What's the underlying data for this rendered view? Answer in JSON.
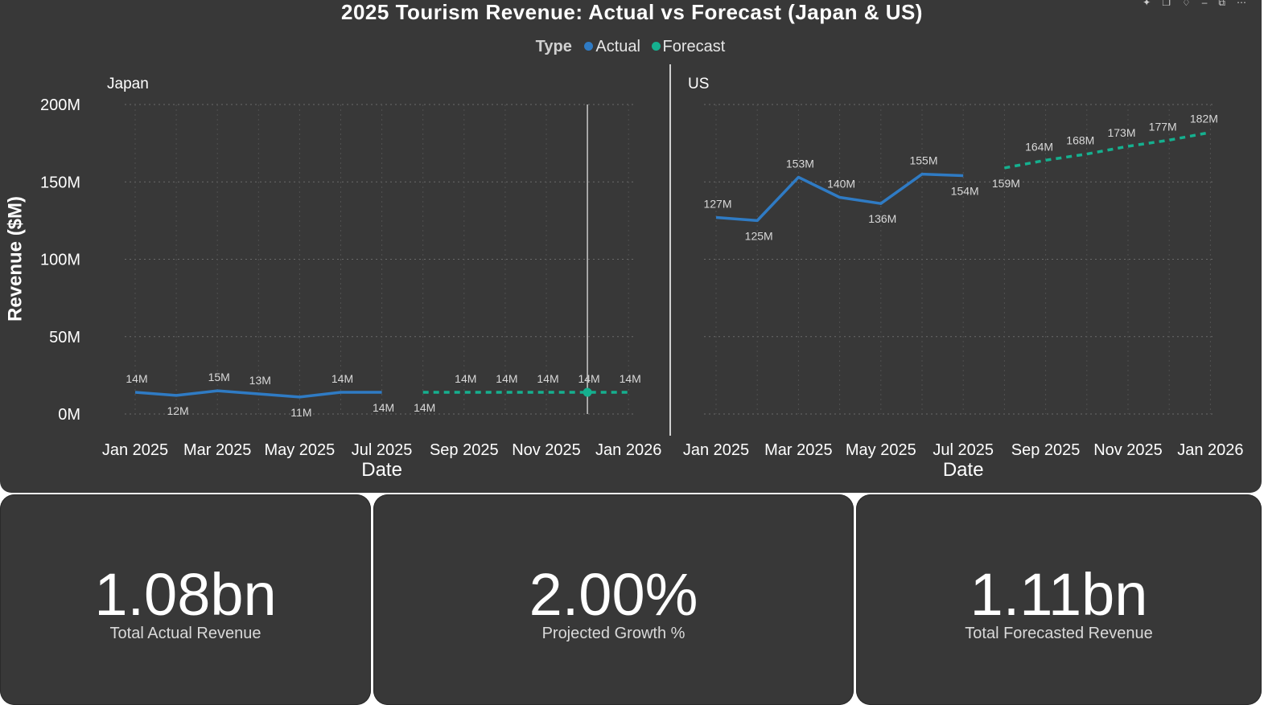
{
  "title": "2025 Tourism Revenue: Actual vs Forecast (Japan & US)",
  "legend": {
    "title": "Type",
    "items": [
      {
        "label": "Actual",
        "color": "#2f7bc4"
      },
      {
        "label": "Forecast",
        "color": "#15b08f"
      }
    ]
  },
  "chart_data": {
    "type": "line",
    "ylabel": "Revenue ($M)",
    "xlabel": "Date",
    "ylim": [
      0,
      200
    ],
    "y_ticks": [
      "0M",
      "50M",
      "100M",
      "150M",
      "200M"
    ],
    "x_ticks": [
      "Jan 2025",
      "Mar 2025",
      "May 2025",
      "Jul 2025",
      "Sep 2025",
      "Nov 2025",
      "Jan 2026"
    ],
    "grid": true,
    "legend_position": "top-center",
    "panels": [
      {
        "name": "Japan",
        "series": [
          {
            "name": "Actual",
            "x": [
              "2025-01",
              "2025-02",
              "2025-03",
              "2025-04",
              "2025-05",
              "2025-06",
              "2025-07"
            ],
            "values": [
              14,
              12,
              15,
              13,
              11,
              14,
              14
            ],
            "labels": [
              "14M",
              "12M",
              "15M",
              "13M",
              "11M",
              "14M",
              "14M"
            ]
          },
          {
            "name": "Forecast",
            "x": [
              "2025-08",
              "2025-09",
              "2025-10",
              "2025-11",
              "2025-12",
              "2026-01"
            ],
            "values": [
              14,
              14,
              14,
              14,
              14,
              14
            ],
            "labels": [
              "14M",
              "14M",
              "14M",
              "14M",
              "14M",
              "14M"
            ]
          }
        ]
      },
      {
        "name": "US",
        "series": [
          {
            "name": "Actual",
            "x": [
              "2025-01",
              "2025-02",
              "2025-03",
              "2025-04",
              "2025-05",
              "2025-06",
              "2025-07"
            ],
            "values": [
              127,
              125,
              153,
              140,
              136,
              155,
              154
            ],
            "labels": [
              "127M",
              "125M",
              "153M",
              "140M",
              "136M",
              "155M",
              "154M"
            ]
          },
          {
            "name": "Forecast",
            "x": [
              "2025-08",
              "2025-09",
              "2025-10",
              "2025-11",
              "2025-12",
              "2026-01"
            ],
            "values": [
              159,
              164,
              168,
              173,
              177,
              182
            ],
            "labels": [
              "159M",
              "164M",
              "168M",
              "173M",
              "177M",
              "182M"
            ]
          }
        ]
      }
    ]
  },
  "kpis": [
    {
      "value": "1.08bn",
      "label": "Total Actual Revenue"
    },
    {
      "value": "2.00%",
      "label": "Projected Growth %"
    },
    {
      "value": "1.11bn",
      "label": "Total Forecasted Revenue"
    }
  ]
}
